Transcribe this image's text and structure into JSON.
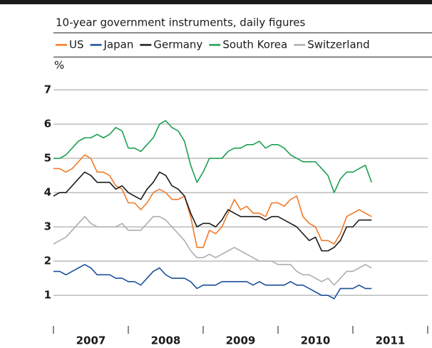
{
  "chart_data": {
    "type": "line",
    "subtitle": "10-year government instruments, daily figures",
    "y_unit": "%",
    "x": [
      2007,
      2007.083,
      2007.167,
      2007.25,
      2007.333,
      2007.417,
      2007.5,
      2007.583,
      2007.667,
      2007.75,
      2007.833,
      2007.917,
      2008,
      2008.083,
      2008.167,
      2008.25,
      2008.333,
      2008.417,
      2008.5,
      2008.583,
      2008.667,
      2008.75,
      2008.833,
      2008.917,
      2009,
      2009.083,
      2009.167,
      2009.25,
      2009.333,
      2009.417,
      2009.5,
      2009.583,
      2009.667,
      2009.75,
      2009.833,
      2009.917,
      2010,
      2010.083,
      2010.167,
      2010.25,
      2010.333,
      2010.417,
      2010.5,
      2010.583,
      2010.667,
      2010.75,
      2010.833,
      2010.917,
      2011,
      2011.083,
      2011.167,
      2011.25
    ],
    "series": [
      {
        "name": "US",
        "color": "#f07a2a",
        "values": [
          4.7,
          4.7,
          4.6,
          4.7,
          4.9,
          5.1,
          5.0,
          4.6,
          4.6,
          4.5,
          4.2,
          4.1,
          3.7,
          3.7,
          3.5,
          3.7,
          4.0,
          4.1,
          4.0,
          3.8,
          3.8,
          3.9,
          3.3,
          2.4,
          2.4,
          2.9,
          2.8,
          3.0,
          3.4,
          3.8,
          3.5,
          3.6,
          3.4,
          3.4,
          3.3,
          3.7,
          3.7,
          3.6,
          3.8,
          3.9,
          3.3,
          3.1,
          3.0,
          2.6,
          2.6,
          2.5,
          2.8,
          3.3,
          3.4,
          3.5,
          3.4,
          3.3
        ]
      },
      {
        "name": "Japan",
        "color": "#1c4f9c",
        "values": [
          1.7,
          1.7,
          1.6,
          1.7,
          1.8,
          1.9,
          1.8,
          1.6,
          1.6,
          1.6,
          1.5,
          1.5,
          1.4,
          1.4,
          1.3,
          1.5,
          1.7,
          1.8,
          1.6,
          1.5,
          1.5,
          1.5,
          1.4,
          1.2,
          1.3,
          1.3,
          1.3,
          1.4,
          1.4,
          1.4,
          1.4,
          1.4,
          1.3,
          1.4,
          1.3,
          1.3,
          1.3,
          1.3,
          1.4,
          1.3,
          1.3,
          1.2,
          1.1,
          1.0,
          1.0,
          0.9,
          1.2,
          1.2,
          1.2,
          1.3,
          1.2,
          1.2
        ]
      },
      {
        "name": "Germany",
        "color": "#1a1a1a",
        "values": [
          3.9,
          4.0,
          4.0,
          4.2,
          4.4,
          4.6,
          4.5,
          4.3,
          4.3,
          4.3,
          4.1,
          4.2,
          4.0,
          3.9,
          3.8,
          4.1,
          4.3,
          4.6,
          4.5,
          4.2,
          4.1,
          3.9,
          3.4,
          3.0,
          3.1,
          3.1,
          3.0,
          3.2,
          3.5,
          3.4,
          3.3,
          3.3,
          3.3,
          3.3,
          3.2,
          3.3,
          3.3,
          3.2,
          3.1,
          3.0,
          2.8,
          2.6,
          2.7,
          2.3,
          2.3,
          2.4,
          2.6,
          3.0,
          3.0,
          3.2,
          3.2,
          3.2
        ]
      },
      {
        "name": "South Korea",
        "color": "#1e9e52",
        "values": [
          5.0,
          5.0,
          5.1,
          5.3,
          5.5,
          5.6,
          5.6,
          5.7,
          5.6,
          5.7,
          5.9,
          5.8,
          5.3,
          5.3,
          5.2,
          5.4,
          5.6,
          6.0,
          6.1,
          5.9,
          5.8,
          5.5,
          4.8,
          4.3,
          4.6,
          5.0,
          5.0,
          5.0,
          5.2,
          5.3,
          5.3,
          5.4,
          5.4,
          5.5,
          5.3,
          5.4,
          5.4,
          5.3,
          5.1,
          5.0,
          4.9,
          4.9,
          4.9,
          4.7,
          4.5,
          4.0,
          4.4,
          4.6,
          4.6,
          4.7,
          4.8,
          4.3
        ]
      },
      {
        "name": "Switzerland",
        "color": "#a9aeb5",
        "values": [
          2.5,
          2.6,
          2.7,
          2.9,
          3.1,
          3.3,
          3.1,
          3.0,
          3.0,
          3.0,
          3.0,
          3.1,
          2.9,
          2.9,
          2.9,
          3.1,
          3.3,
          3.3,
          3.2,
          3.0,
          2.8,
          2.6,
          2.3,
          2.1,
          2.1,
          2.2,
          2.1,
          2.2,
          2.3,
          2.4,
          2.3,
          2.2,
          2.1,
          2.0,
          2.0,
          2.0,
          1.9,
          1.9,
          1.9,
          1.7,
          1.6,
          1.6,
          1.5,
          1.4,
          1.5,
          1.3,
          1.5,
          1.7,
          1.7,
          1.8,
          1.9,
          1.8
        ]
      }
    ],
    "xlim": [
      2007,
      2012
    ],
    "xticks": [
      2007,
      2008,
      2009,
      2010,
      2011,
      2012
    ],
    "xtick_labels": [
      {
        "value": 2007.5,
        "label": "2007"
      },
      {
        "value": 2008.5,
        "label": "2008"
      },
      {
        "value": 2009.5,
        "label": "2009"
      },
      {
        "value": 2010.5,
        "label": "2010"
      },
      {
        "value": 2011.5,
        "label": "2011"
      }
    ],
    "ylim": [
      0.4,
      7
    ],
    "yticks": [
      1,
      2,
      3,
      4,
      5,
      6,
      7
    ],
    "grid": true
  }
}
